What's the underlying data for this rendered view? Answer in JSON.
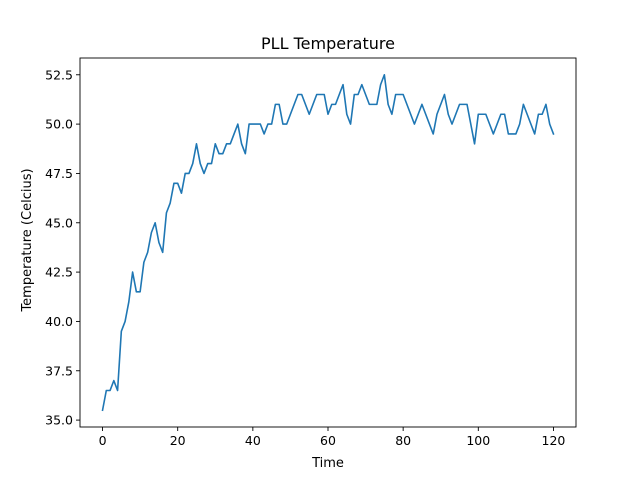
{
  "chart_data": {
    "type": "line",
    "title": "PLL Temperature",
    "xlabel": "Time",
    "ylabel": "Temperature (Celcius)",
    "xlim": [
      -6,
      126
    ],
    "ylim": [
      34.65,
      53.35
    ],
    "xticks": [
      0,
      20,
      40,
      60,
      80,
      100,
      120
    ],
    "yticks": [
      35.0,
      37.5,
      40.0,
      42.5,
      45.0,
      47.5,
      50.0,
      52.5
    ],
    "ytick_labels": [
      "35.0",
      "37.5",
      "40.0",
      "42.5",
      "45.0",
      "47.5",
      "50.0",
      "52.5"
    ],
    "xtick_labels": [
      "0",
      "20",
      "40",
      "60",
      "80",
      "100",
      "120"
    ],
    "grid": false,
    "series": [
      {
        "color": "#1f77b4",
        "x": [
          0,
          1,
          2,
          3,
          4,
          5,
          6,
          7,
          8,
          9,
          10,
          11,
          12,
          13,
          14,
          15,
          16,
          17,
          18,
          19,
          20,
          21,
          22,
          23,
          24,
          25,
          26,
          27,
          28,
          29,
          30,
          31,
          32,
          33,
          34,
          35,
          36,
          37,
          38,
          39,
          40,
          41,
          42,
          43,
          44,
          45,
          46,
          47,
          48,
          49,
          50,
          51,
          52,
          53,
          54,
          55,
          56,
          57,
          58,
          59,
          60,
          61,
          62,
          63,
          64,
          65,
          66,
          67,
          68,
          69,
          70,
          71,
          72,
          73,
          74,
          75,
          76,
          77,
          78,
          79,
          80,
          81,
          82,
          83,
          84,
          85,
          86,
          87,
          88,
          89,
          90,
          91,
          92,
          93,
          94,
          95,
          96,
          97,
          98,
          99,
          100,
          101,
          102,
          103,
          104,
          105,
          106,
          107,
          108,
          109,
          110,
          111,
          112,
          113,
          114,
          115,
          116,
          117,
          118,
          119,
          120
        ],
        "y": [
          35.5,
          36.5,
          36.5,
          37.0,
          36.5,
          39.5,
          40.0,
          41.0,
          42.5,
          41.5,
          41.5,
          43.0,
          43.5,
          44.5,
          45.0,
          44.0,
          43.5,
          45.5,
          46.0,
          47.0,
          47.0,
          46.5,
          47.5,
          47.5,
          48.0,
          49.0,
          48.0,
          47.5,
          48.0,
          48.0,
          49.0,
          48.5,
          48.5,
          49.0,
          49.0,
          49.5,
          50.0,
          49.0,
          48.5,
          50.0,
          50.0,
          50.0,
          50.0,
          49.5,
          50.0,
          50.0,
          51.0,
          51.0,
          50.0,
          50.0,
          50.5,
          51.0,
          51.5,
          51.5,
          51.0,
          50.5,
          51.0,
          51.5,
          51.5,
          51.5,
          50.5,
          51.0,
          51.0,
          51.5,
          52.0,
          50.5,
          50.0,
          51.5,
          51.5,
          52.0,
          51.5,
          51.0,
          51.0,
          51.0,
          52.0,
          52.5,
          51.0,
          50.5,
          51.5,
          51.5,
          51.5,
          51.0,
          50.5,
          50.0,
          50.5,
          51.0,
          50.5,
          50.0,
          49.5,
          50.5,
          51.0,
          51.5,
          50.5,
          50.0,
          50.5,
          51.0,
          51.0,
          51.0,
          50.0,
          49.0,
          50.5,
          50.5,
          50.5,
          50.0,
          49.5,
          50.0,
          50.5,
          50.5,
          49.5,
          49.5,
          49.5,
          50.0,
          51.0,
          50.5,
          50.0,
          49.5,
          50.5,
          50.5,
          51.0,
          50.0,
          49.5
        ]
      }
    ]
  }
}
